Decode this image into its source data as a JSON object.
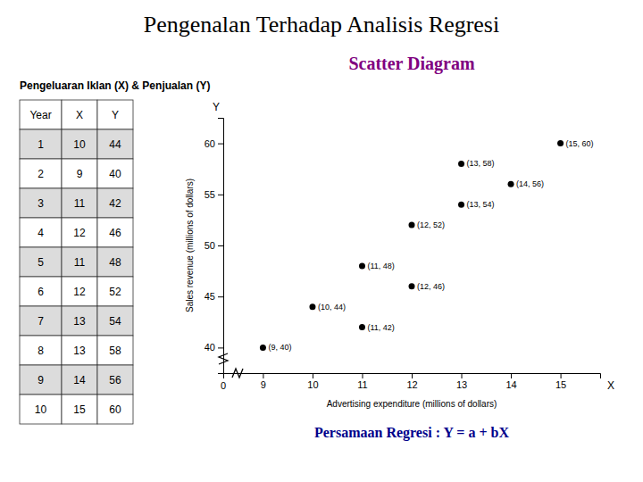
{
  "chart_data": {
    "type": "scatter",
    "title": "Pengenalan Terhadap Analisis Regresi",
    "subtitle": "Pengeluaran Iklan (X) & Penjualan (Y)",
    "x_label": "Advertising expenditure (millions of dollars)",
    "y_label": "Sales revenue (millions of dollars)",
    "x": [
      10,
      9,
      11,
      12,
      11,
      12,
      13,
      13,
      14,
      15
    ],
    "values": [
      44,
      40,
      42,
      46,
      48,
      52,
      54,
      58,
      56,
      60
    ],
    "value_labels": [
      "(10, 44)",
      "(9, 40)",
      "(11, 42)",
      "(12, 46)",
      "(11, 48)",
      "(12, 52)",
      "(13, 54)",
      "(13, 58)",
      "(14, 56)",
      "(15, 60)"
    ],
    "data_labels": true,
    "color": "#000000",
    "xlim": [
      8.2,
      15.8
    ],
    "ylim": [
      37.5,
      62.5
    ],
    "xticks": [
      9,
      10,
      11,
      12,
      13,
      14,
      15
    ],
    "yticks": [
      40,
      45,
      50,
      55,
      60
    ],
    "grid": false,
    "annotations": [
      {
        "text": "Scatter Diagram",
        "color": "#800080"
      },
      {
        "text": "Persamaan Regresi : Y = a + bX",
        "color": "#00008B"
      },
      {
        "text": "0"
      },
      {
        "text": "Y"
      },
      {
        "text": "X"
      }
    ],
    "table": {
      "columns": [
        "Year",
        "X",
        "Y"
      ],
      "rows": [
        [
          1,
          10,
          44
        ],
        [
          2,
          9,
          40
        ],
        [
          3,
          11,
          42
        ],
        [
          4,
          12,
          46
        ],
        [
          5,
          11,
          48
        ],
        [
          6,
          12,
          52
        ],
        [
          7,
          13,
          54
        ],
        [
          8,
          13,
          58
        ],
        [
          9,
          14,
          56
        ],
        [
          10,
          15,
          60
        ]
      ]
    }
  }
}
